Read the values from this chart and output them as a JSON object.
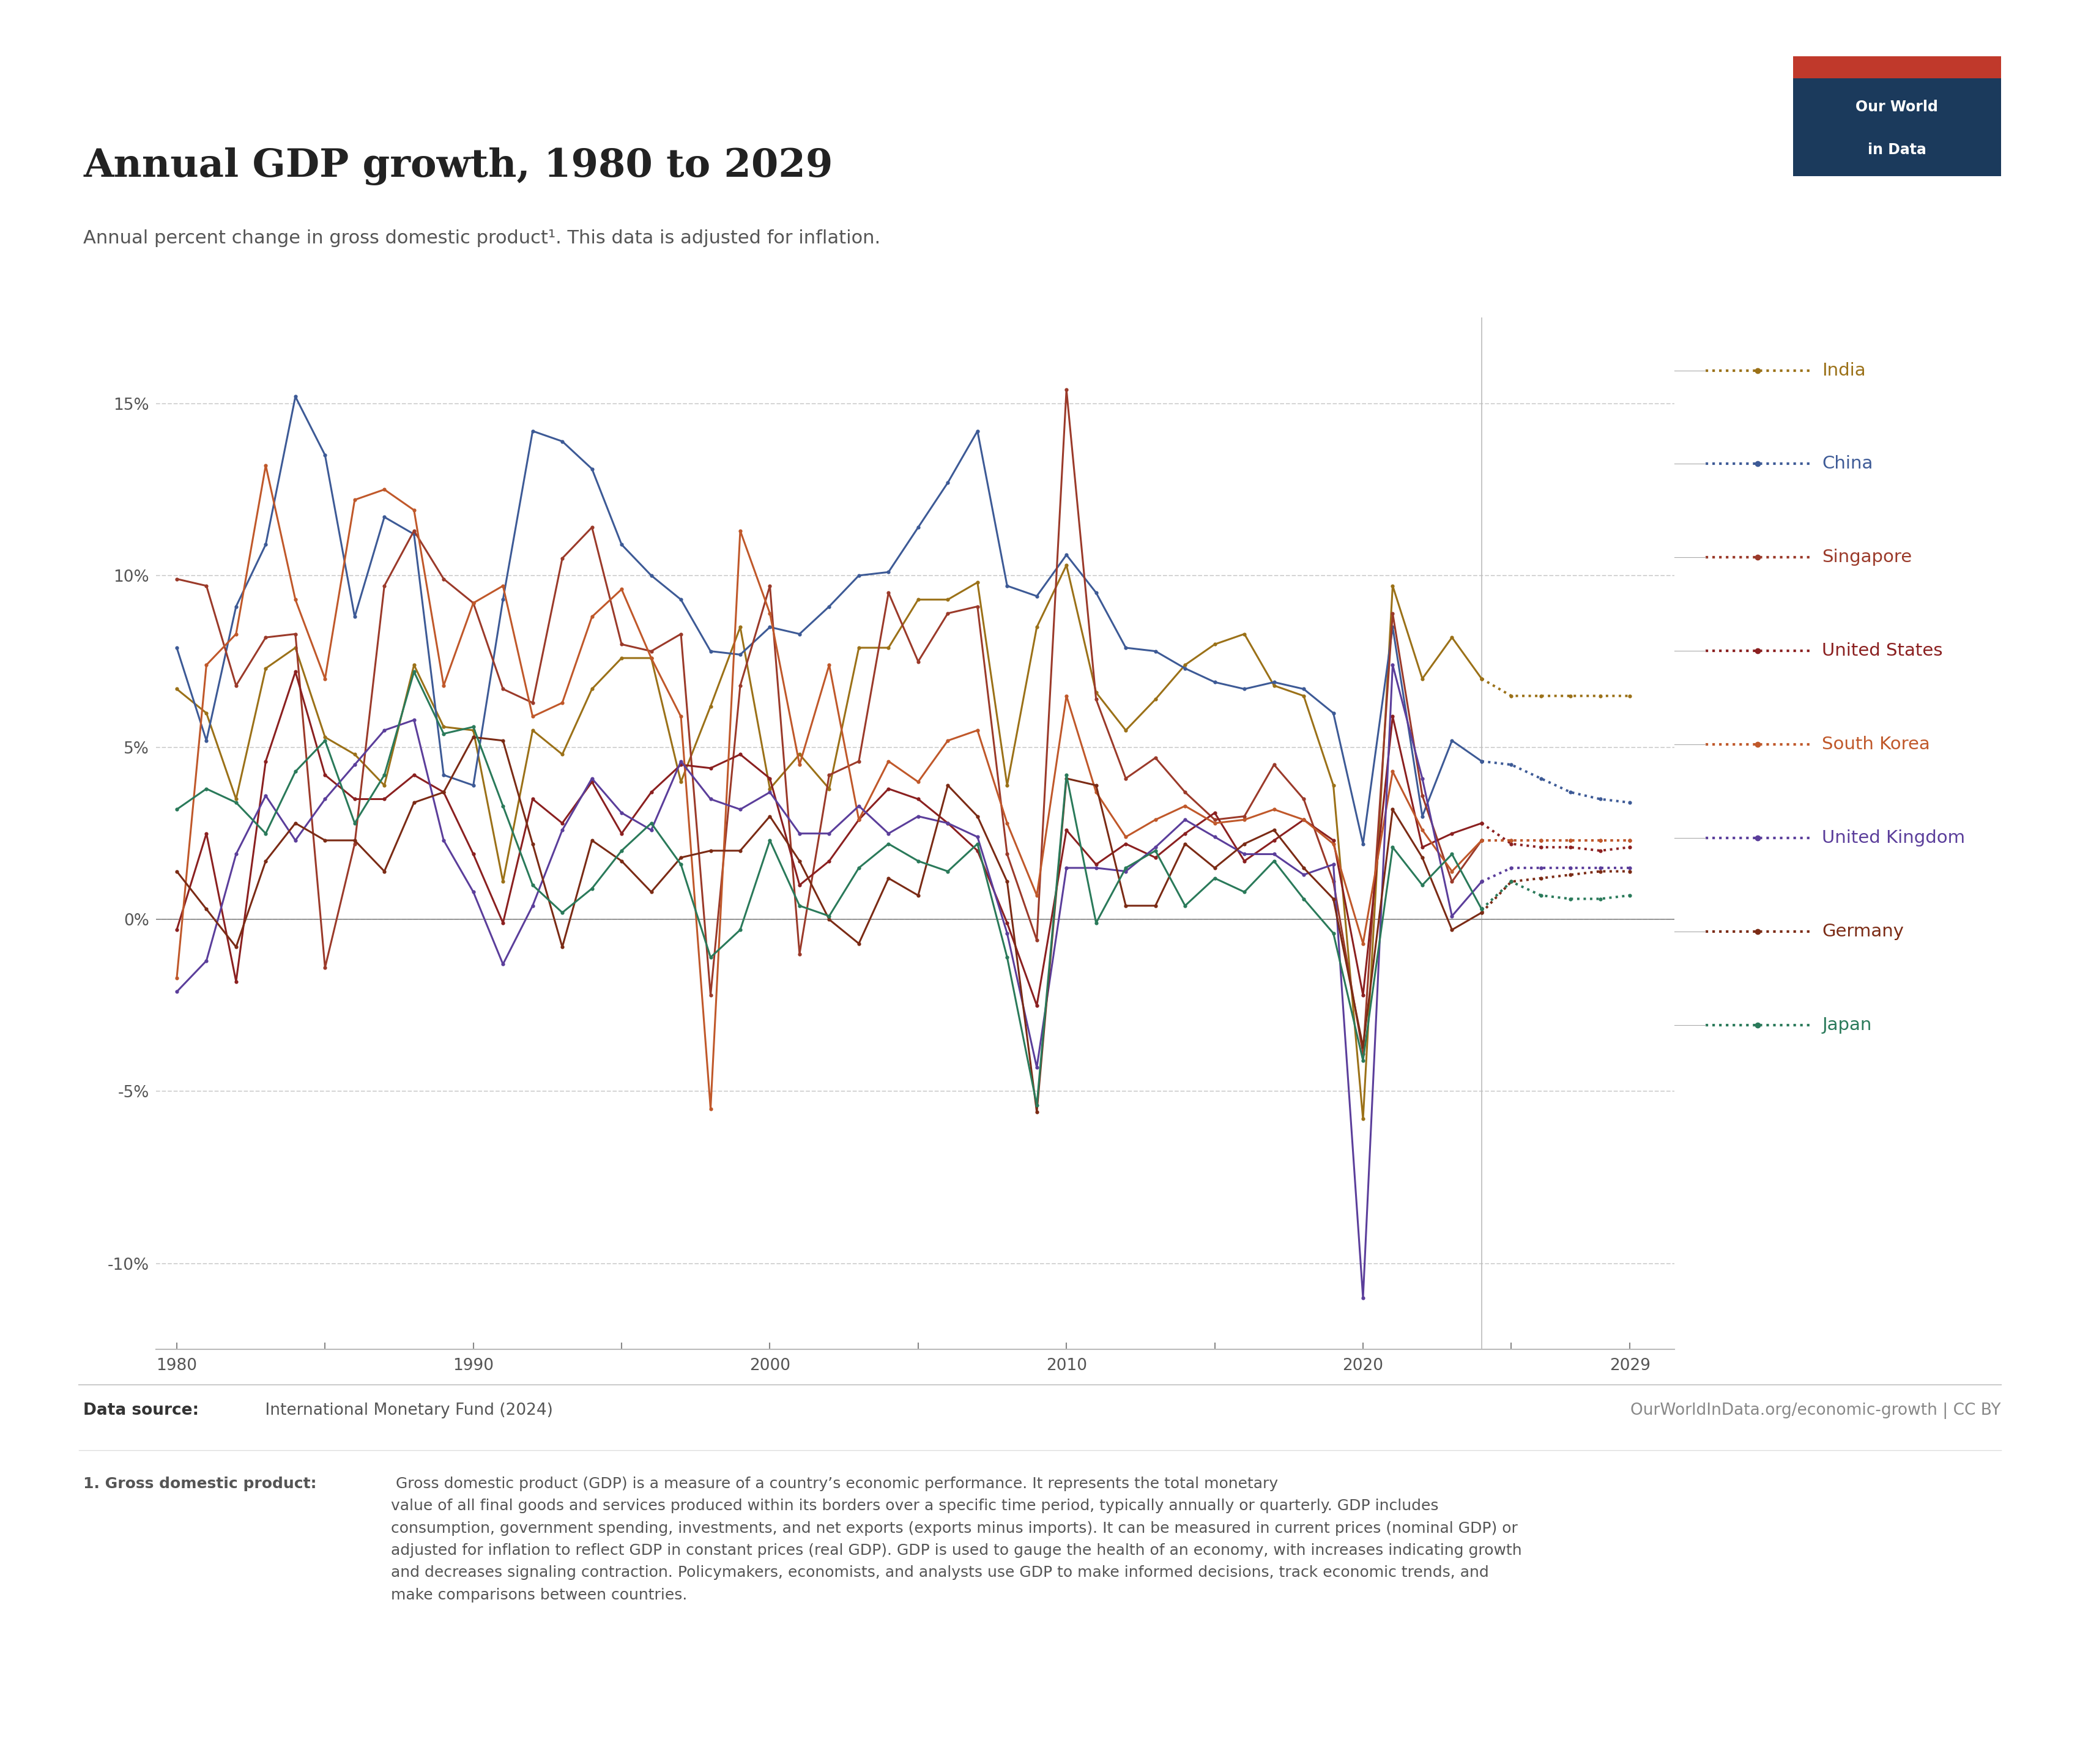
{
  "title": "Annual GDP growth, 1980 to 2029",
  "subtitle": "Annual percent change in gross domestic product¹. This data is adjusted for inflation.",
  "datasource_bold": "Data source:",
  "datasource_normal": " International Monetary Fund (2024)",
  "credit": "OurWorldInData.org/economic-growth | CC BY",
  "footnote_bold": "1. Gross domestic product:",
  "footnote_normal": " Gross domestic product (GDP) is a measure of a country’s economic performance. It represents the total monetary\nvalue of all final goods and services produced within its borders over a specific time period, typically annually or quarterly. GDP includes\nconsumption, government spending, investments, and net exports (exports minus imports). It can be measured in current prices (nominal GDP) or\nadjusted for inflation to reflect GDP in constant prices (real GDP). GDP is used to gauge the health of an economy, with increases indicating growth\nand decreases signaling contraction. Policymakers, economists, and analysts use GDP to make informed decisions, track economic trends, and\nmake comparisons between countries.",
  "years": [
    1980,
    1981,
    1982,
    1983,
    1984,
    1985,
    1986,
    1987,
    1988,
    1989,
    1990,
    1991,
    1992,
    1993,
    1994,
    1995,
    1996,
    1997,
    1998,
    1999,
    2000,
    2001,
    2002,
    2003,
    2004,
    2005,
    2006,
    2007,
    2008,
    2009,
    2010,
    2011,
    2012,
    2013,
    2014,
    2015,
    2016,
    2017,
    2018,
    2019,
    2020,
    2021,
    2022,
    2023,
    2024,
    2025,
    2026,
    2027,
    2028,
    2029
  ],
  "forecast_start": 2024,
  "countries": {
    "India": {
      "color": "#9B7118",
      "hist_linestyle": "solid",
      "fore_linestyle": "dotted",
      "linewidth": 2.2,
      "markersize": 4.5,
      "data": [
        6.7,
        6.0,
        3.5,
        7.3,
        7.9,
        5.3,
        4.8,
        3.9,
        7.4,
        5.6,
        5.5,
        1.1,
        5.5,
        4.8,
        6.7,
        7.6,
        7.6,
        4.0,
        6.2,
        8.5,
        3.8,
        4.8,
        3.8,
        7.9,
        7.9,
        9.3,
        9.3,
        9.8,
        3.9,
        8.5,
        10.3,
        6.6,
        5.5,
        6.4,
        7.4,
        8.0,
        8.3,
        6.8,
        6.5,
        3.9,
        -5.8,
        9.7,
        7.0,
        8.2,
        7.0,
        6.5,
        6.5,
        6.5,
        6.5,
        6.5
      ]
    },
    "China": {
      "color": "#3D5A96",
      "hist_linestyle": "solid",
      "fore_linestyle": "dotted",
      "linewidth": 2.2,
      "markersize": 4.5,
      "data": [
        7.9,
        5.2,
        9.1,
        10.9,
        15.2,
        13.5,
        8.8,
        11.7,
        11.2,
        4.2,
        3.9,
        9.3,
        14.2,
        13.9,
        13.1,
        10.9,
        10.0,
        9.3,
        7.8,
        7.7,
        8.5,
        8.3,
        9.1,
        10.0,
        10.1,
        11.4,
        12.7,
        14.2,
        9.7,
        9.4,
        10.6,
        9.5,
        7.9,
        7.8,
        7.3,
        6.9,
        6.7,
        6.9,
        6.7,
        6.0,
        2.2,
        8.5,
        3.0,
        5.2,
        4.6,
        4.5,
        4.1,
        3.7,
        3.5,
        3.4
      ]
    },
    "Singapore": {
      "color": "#9B3A2A",
      "hist_linestyle": "solid",
      "fore_linestyle": "dotted",
      "linewidth": 2.2,
      "markersize": 4.5,
      "data": [
        9.9,
        9.7,
        6.8,
        8.2,
        8.3,
        -1.4,
        2.2,
        9.7,
        11.3,
        9.9,
        9.2,
        6.7,
        6.3,
        10.5,
        11.4,
        8.0,
        7.8,
        8.3,
        -2.2,
        6.8,
        9.7,
        -1.0,
        4.2,
        4.6,
        9.5,
        7.5,
        8.9,
        9.1,
        1.9,
        -0.6,
        15.4,
        6.4,
        4.1,
        4.7,
        3.7,
        2.9,
        3.0,
        4.5,
        3.5,
        1.1,
        -3.9,
        8.9,
        3.6,
        1.1,
        2.3,
        2.3,
        2.3,
        2.3,
        2.3,
        2.3
      ]
    },
    "United States": {
      "color": "#8B2020",
      "hist_linestyle": "solid",
      "fore_linestyle": "dotted",
      "linewidth": 2.2,
      "markersize": 4.5,
      "data": [
        -0.3,
        2.5,
        -1.8,
        4.6,
        7.2,
        4.2,
        3.5,
        3.5,
        4.2,
        3.7,
        1.9,
        -0.1,
        3.5,
        2.8,
        4.0,
        2.5,
        3.7,
        4.5,
        4.4,
        4.8,
        4.1,
        1.0,
        1.7,
        2.9,
        3.8,
        3.5,
        2.8,
        2.0,
        -0.1,
        -2.5,
        2.6,
        1.6,
        2.2,
        1.8,
        2.5,
        3.1,
        1.7,
        2.3,
        2.9,
        2.3,
        -2.2,
        5.9,
        2.1,
        2.5,
        2.8,
        2.2,
        2.1,
        2.1,
        2.0,
        2.1
      ]
    },
    "South Korea": {
      "color": "#C0582A",
      "hist_linestyle": "solid",
      "fore_linestyle": "dotted",
      "linewidth": 2.2,
      "markersize": 4.5,
      "data": [
        -1.7,
        7.4,
        8.3,
        13.2,
        9.3,
        7.0,
        12.2,
        12.5,
        11.9,
        6.8,
        9.2,
        9.7,
        5.9,
        6.3,
        8.8,
        9.6,
        7.6,
        5.9,
        -5.5,
        11.3,
        8.9,
        4.5,
        7.4,
        2.9,
        4.6,
        4.0,
        5.2,
        5.5,
        2.8,
        0.7,
        6.5,
        3.7,
        2.4,
        2.9,
        3.3,
        2.8,
        2.9,
        3.2,
        2.9,
        2.2,
        -0.7,
        4.3,
        2.6,
        1.4,
        2.3,
        2.3,
        2.3,
        2.3,
        2.3,
        2.3
      ]
    },
    "United Kingdom": {
      "color": "#5B3E9B",
      "hist_linestyle": "solid",
      "fore_linestyle": "dotted",
      "linewidth": 2.2,
      "markersize": 4.5,
      "data": [
        -2.1,
        -1.2,
        1.9,
        3.6,
        2.3,
        3.5,
        4.5,
        5.5,
        5.8,
        2.3,
        0.8,
        -1.3,
        0.4,
        2.6,
        4.1,
        3.1,
        2.6,
        4.6,
        3.5,
        3.2,
        3.7,
        2.5,
        2.5,
        3.3,
        2.5,
        3.0,
        2.8,
        2.4,
        -0.4,
        -4.3,
        1.5,
        1.5,
        1.4,
        2.1,
        2.9,
        2.4,
        1.9,
        1.9,
        1.3,
        1.6,
        -11.0,
        7.4,
        4.1,
        0.1,
        1.1,
        1.5,
        1.5,
        1.5,
        1.5,
        1.5
      ]
    },
    "Germany": {
      "color": "#7B2B15",
      "hist_linestyle": "solid",
      "fore_linestyle": "dotted",
      "linewidth": 2.2,
      "markersize": 4.5,
      "data": [
        1.4,
        0.3,
        -0.8,
        1.7,
        2.8,
        2.3,
        2.3,
        1.4,
        3.4,
        3.7,
        5.3,
        5.2,
        2.2,
        -0.8,
        2.3,
        1.7,
        0.8,
        1.8,
        2.0,
        2.0,
        3.0,
        1.7,
        0.0,
        -0.7,
        1.2,
        0.7,
        3.9,
        3.0,
        1.1,
        -5.6,
        4.1,
        3.9,
        0.4,
        0.4,
        2.2,
        1.5,
        2.2,
        2.6,
        1.5,
        0.6,
        -3.7,
        3.2,
        1.8,
        -0.3,
        0.2,
        1.1,
        1.2,
        1.3,
        1.4,
        1.4
      ]
    },
    "Japan": {
      "color": "#2A7A5A",
      "hist_linestyle": "solid",
      "fore_linestyle": "dotted",
      "linewidth": 2.2,
      "markersize": 4.5,
      "data": [
        3.2,
        3.8,
        3.4,
        2.5,
        4.3,
        5.2,
        2.8,
        4.2,
        7.2,
        5.4,
        5.6,
        3.3,
        1.0,
        0.2,
        0.9,
        2.0,
        2.8,
        1.6,
        -1.1,
        -0.3,
        2.3,
        0.4,
        0.1,
        1.5,
        2.2,
        1.7,
        1.4,
        2.2,
        -1.1,
        -5.4,
        4.2,
        -0.1,
        1.5,
        2.0,
        0.4,
        1.2,
        0.8,
        1.7,
        0.6,
        -0.4,
        -4.1,
        2.1,
        1.0,
        1.9,
        0.3,
        1.1,
        0.7,
        0.6,
        0.6,
        0.7
      ]
    }
  },
  "legend_order": [
    "India",
    "China",
    "Singapore",
    "United States",
    "South Korea",
    "United Kingdom",
    "Germany",
    "Japan"
  ],
  "ylim": [
    -12.5,
    17.5
  ],
  "yticks": [
    -10,
    -5,
    0,
    5,
    10,
    15
  ],
  "ytick_labels": [
    "-10%",
    "-5%",
    "0%",
    "5%",
    "10%",
    "15%"
  ],
  "xlim": [
    1979.3,
    2030.5
  ],
  "xtick_positions": [
    1980,
    1990,
    2000,
    2010,
    2020,
    2029
  ],
  "xtick_labels": [
    "1980",
    "1990",
    "2000",
    "2010",
    "2020",
    "2029"
  ],
  "xtick_minor_positions": [
    1985,
    1995,
    2005,
    2015,
    2025
  ],
  "background_color": "#FFFFFF",
  "logo_bg_color": "#1B3A5C",
  "logo_red_color": "#C0392B",
  "logo_text_line1": "Our World",
  "logo_text_line2": "in Data"
}
